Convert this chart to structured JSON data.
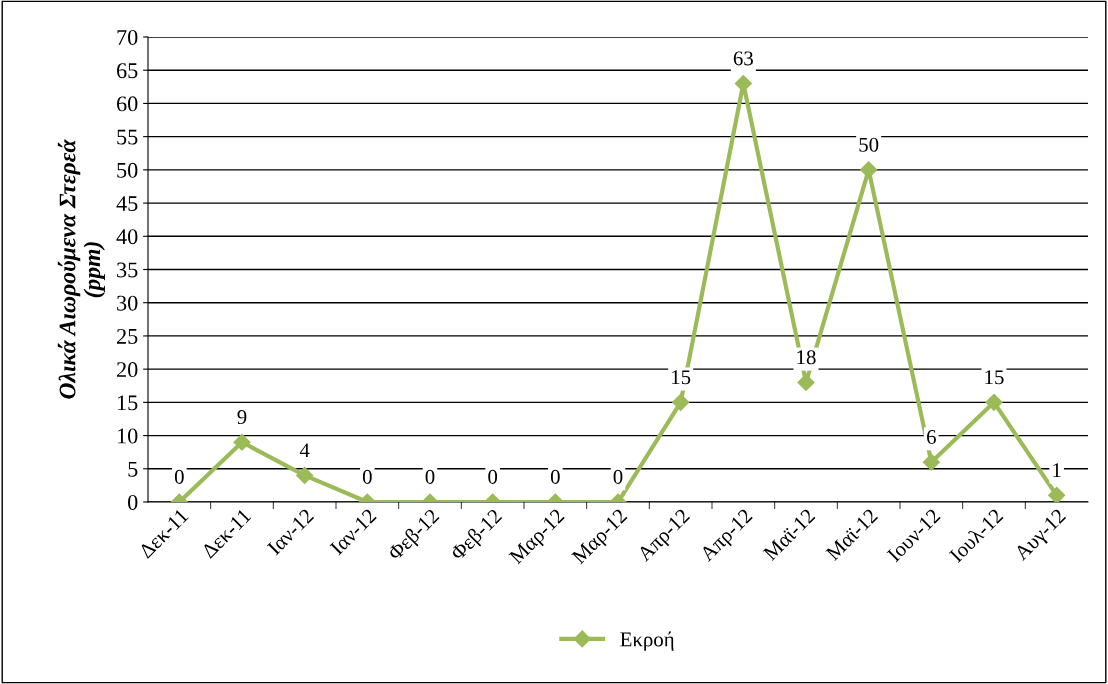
{
  "chart_data": {
    "type": "line",
    "ylabel": "Ολικά Αιωρούμενα Στερεά\n(ppm)",
    "categories": [
      "Δεκ-11",
      "Δεκ-11",
      "Ιαν-12",
      "Ιαν-12",
      "Φεβ-12",
      "Φεβ-12",
      "Μαρ-12",
      "Μαρ-12",
      "Απρ-12",
      "Απρ-12",
      "Μαϊ-12",
      "Μαϊ-12",
      "Ιουν-12",
      "Ιουλ-12",
      "Αυγ-12"
    ],
    "series": [
      {
        "name": "Εκροή",
        "color": "#9bbb59",
        "values": [
          0,
          9,
          4,
          0,
          0,
          0,
          0,
          0,
          15,
          63,
          18,
          50,
          6,
          15,
          1
        ]
      }
    ],
    "ylim": [
      0,
      70
    ],
    "yticks": [
      0,
      5,
      10,
      15,
      20,
      25,
      30,
      35,
      40,
      45,
      50,
      55,
      60,
      65,
      70
    ],
    "grid": "y",
    "legend": "bottom",
    "marker": "diamond",
    "line_style": "solid",
    "data_labels": true
  }
}
